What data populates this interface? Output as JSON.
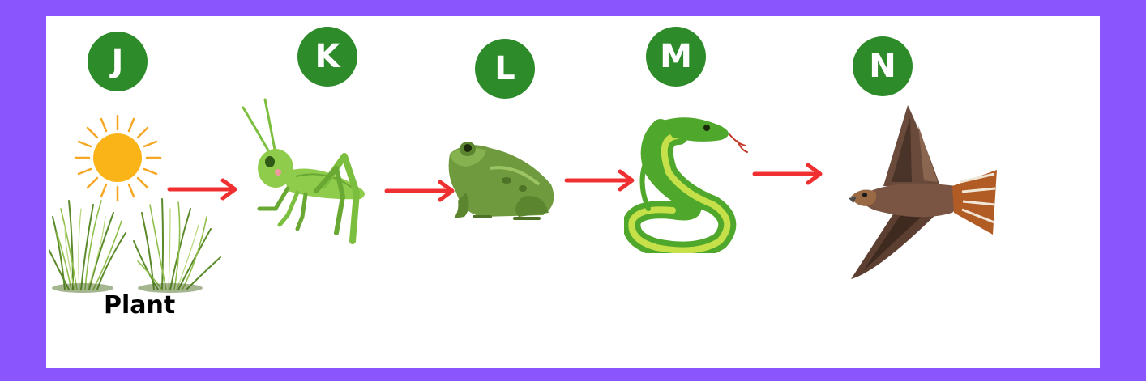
{
  "diagram": {
    "type": "food-chain",
    "colors": {
      "frame": "#8b55fd",
      "badge": "#2e8b2a",
      "arrow": "#f03030"
    },
    "stages": [
      {
        "letter": "J",
        "organism": "sun-and-grass"
      },
      {
        "letter": "K",
        "organism": "grasshopper"
      },
      {
        "letter": "L",
        "organism": "frog"
      },
      {
        "letter": "M",
        "organism": "snake"
      },
      {
        "letter": "N",
        "organism": "hawk"
      }
    ],
    "plant_label": "Plant"
  }
}
